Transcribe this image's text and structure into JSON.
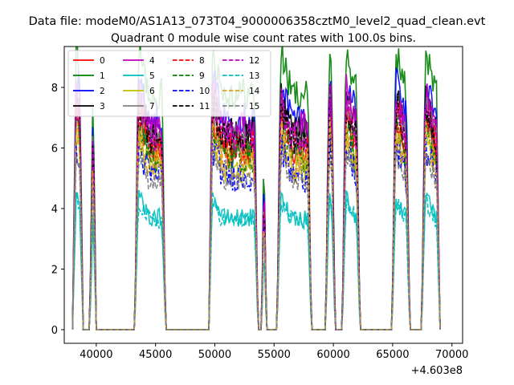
{
  "figure": {
    "suptitle": "Data file: modeM0/AS1A13_073T04_9000006358cztM0_level2_quad_clean.evt"
  },
  "chart_data": {
    "type": "line",
    "title": "Quadrant 0 module wise count rates with 100.0s bins.",
    "xlabel": "",
    "ylabel": "",
    "x_offset_label": "+4.603e8",
    "xlim": [
      37300,
      70900
    ],
    "ylim": [
      -0.45,
      9.35
    ],
    "xticks": [
      40000,
      45000,
      50000,
      55000,
      60000,
      65000,
      70000
    ],
    "xtick_labels": [
      "40000",
      "45000",
      "50000",
      "55000",
      "60000",
      "65000",
      "70000"
    ],
    "yticks": [
      0,
      2,
      4,
      6,
      8
    ],
    "ytick_labels": [
      "0",
      "2",
      "4",
      "6",
      "8"
    ],
    "grid": false,
    "legend_placement": "top-left",
    "orbit_segments": [
      [
        38000,
        38900
      ],
      [
        39450,
        40000
      ],
      [
        43250,
        45850
      ],
      [
        49500,
        53650
      ],
      [
        53950,
        54350
      ],
      [
        55250,
        58150
      ],
      [
        59350,
        60150
      ],
      [
        60750,
        62250
      ],
      [
        64950,
        66450
      ],
      [
        67450,
        69000
      ]
    ],
    "series": [
      {
        "name": "0",
        "color": "#ff0000",
        "dash": "solid",
        "level": 5.9
      },
      {
        "name": "1",
        "color": "#008000",
        "dash": "solid",
        "level": 7.8
      },
      {
        "name": "2",
        "color": "#0000ff",
        "dash": "solid",
        "level": 7.0
      },
      {
        "name": "3",
        "color": "#000000",
        "dash": "solid",
        "level": 6.5
      },
      {
        "name": "4",
        "color": "#bf00bf",
        "dash": "solid",
        "level": 6.7
      },
      {
        "name": "5",
        "color": "#00bfbf",
        "dash": "solid",
        "level": 3.7
      },
      {
        "name": "6",
        "color": "#bfbf00",
        "dash": "solid",
        "level": 5.4
      },
      {
        "name": "7",
        "color": "#808080",
        "dash": "solid",
        "level": 6.2
      },
      {
        "name": "8",
        "color": "#ff0000",
        "dash": "dashed",
        "level": 6.1
      },
      {
        "name": "9",
        "color": "#008000",
        "dash": "dashed",
        "level": 5.7
      },
      {
        "name": "10",
        "color": "#0000ff",
        "dash": "dashed",
        "level": 5.1
      },
      {
        "name": "11",
        "color": "#000000",
        "dash": "dashed",
        "level": 6.3
      },
      {
        "name": "12",
        "color": "#bf00bf",
        "dash": "dashed",
        "level": 6.4
      },
      {
        "name": "13",
        "color": "#00bfbf",
        "dash": "dashed",
        "level": 3.6
      },
      {
        "name": "14",
        "color": "#daa520",
        "dash": "dashed",
        "level": 5.5
      },
      {
        "name": "15",
        "color": "#808080",
        "dash": "dashed",
        "level": 4.9
      }
    ]
  }
}
